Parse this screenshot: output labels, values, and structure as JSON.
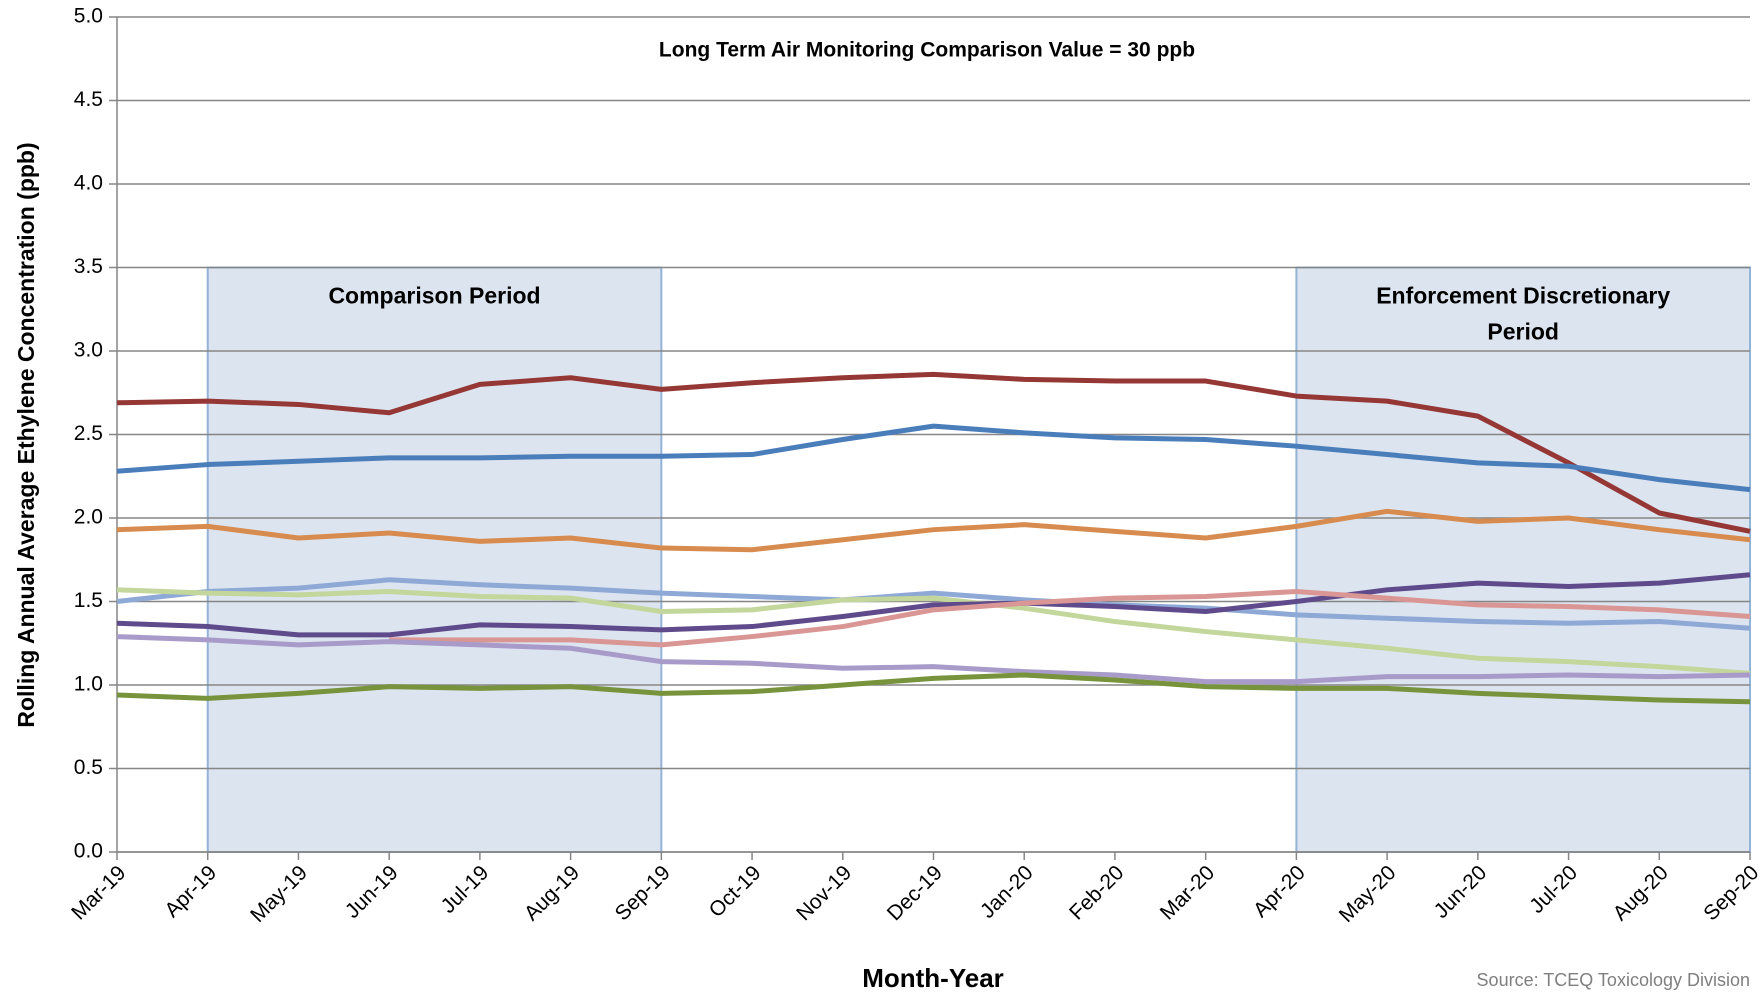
{
  "chart_data": {
    "type": "line",
    "annotation": "Long Term Air Monitoring Comparison Value = 30 ppb",
    "x_label": "Month-Year",
    "y_label": "Rolling Annual Average Ethylene  Concentration (ppb)",
    "source": "Source: TCEQ Toxicology Division",
    "categories": [
      "Mar-19",
      "Apr-19",
      "May-19",
      "Jun-19",
      "Jul-19",
      "Aug-19",
      "Sep-19",
      "Oct-19",
      "Nov-19",
      "Dec-19",
      "Jan-20",
      "Feb-20",
      "Mar-20",
      "Apr-20",
      "May-20",
      "Jun-20",
      "Jul-20",
      "Aug-20",
      "Sep-20"
    ],
    "ylim": [
      0,
      5
    ],
    "yticks": [
      {
        "value": 0,
        "label": "0.0"
      },
      {
        "value": 0.5,
        "label": "0.5"
      },
      {
        "value": 1,
        "label": "1.0"
      },
      {
        "value": 1.5,
        "label": "1.5"
      },
      {
        "value": 2,
        "label": "2.0"
      },
      {
        "value": 2.5,
        "label": "2.5"
      },
      {
        "value": 3,
        "label": "3.0"
      },
      {
        "value": 3.5,
        "label": "3.5"
      },
      {
        "value": 4,
        "label": "4.0"
      },
      {
        "value": 4.5,
        "label": "4.5"
      },
      {
        "value": 5,
        "label": "5.0"
      }
    ],
    "grid": true,
    "periods": [
      {
        "from": "Apr-19",
        "to": "Sep-19",
        "top": 3.5,
        "label": [
          "Comparison  Period"
        ]
      },
      {
        "from": "Apr-20",
        "to": "Sep-20",
        "top": 3.5,
        "label": [
          "Enforcement Discretionary",
          "Period"
        ]
      }
    ],
    "series": [
      {
        "color": "#953735",
        "values": [
          2.69,
          2.7,
          2.68,
          2.63,
          2.8,
          2.84,
          2.77,
          2.81,
          2.84,
          2.86,
          2.83,
          2.82,
          2.82,
          2.73,
          2.7,
          2.61,
          2.33,
          2.03,
          1.92
        ]
      },
      {
        "color": "#4a7ebb",
        "values": [
          2.28,
          2.32,
          2.34,
          2.36,
          2.36,
          2.37,
          2.37,
          2.38,
          2.47,
          2.55,
          2.51,
          2.48,
          2.47,
          2.43,
          2.38,
          2.33,
          2.31,
          2.23,
          2.17
        ]
      },
      {
        "color": "#d88b4e",
        "values": [
          1.93,
          1.95,
          1.88,
          1.91,
          1.86,
          1.88,
          1.82,
          1.81,
          1.87,
          1.93,
          1.96,
          1.92,
          1.88,
          1.95,
          2.04,
          1.98,
          2.0,
          1.93,
          1.87
        ]
      },
      {
        "color": "#8ea9d6",
        "values": [
          1.5,
          1.56,
          1.58,
          1.63,
          1.6,
          1.58,
          1.55,
          1.53,
          1.51,
          1.55,
          1.51,
          1.48,
          1.46,
          1.42,
          1.4,
          1.38,
          1.37,
          1.38,
          1.34
        ]
      },
      {
        "color": "#c3d69b",
        "values": [
          1.57,
          1.55,
          1.54,
          1.56,
          1.53,
          1.52,
          1.44,
          1.45,
          1.51,
          1.52,
          1.46,
          1.38,
          1.32,
          1.27,
          1.22,
          1.16,
          1.14,
          1.11,
          1.07
        ]
      },
      {
        "color": "#5f4b8b",
        "values": [
          1.37,
          1.35,
          1.3,
          1.3,
          1.36,
          1.35,
          1.33,
          1.35,
          1.41,
          1.48,
          1.49,
          1.47,
          1.44,
          1.5,
          1.57,
          1.61,
          1.59,
          1.61,
          1.66
        ]
      },
      {
        "color": "#d99694",
        "values": [
          null,
          null,
          null,
          1.27,
          1.27,
          1.27,
          1.24,
          1.29,
          1.35,
          1.45,
          1.49,
          1.52,
          1.53,
          1.56,
          1.52,
          1.48,
          1.47,
          1.45,
          1.41
        ]
      },
      {
        "color": "#a99bc9",
        "values": [
          1.29,
          1.27,
          1.24,
          1.26,
          1.24,
          1.22,
          1.14,
          1.13,
          1.1,
          1.11,
          1.08,
          1.06,
          1.02,
          1.02,
          1.05,
          1.05,
          1.06,
          1.05,
          1.06
        ]
      },
      {
        "color": "#77933c",
        "values": [
          0.94,
          0.92,
          0.95,
          0.99,
          0.98,
          0.99,
          0.95,
          0.96,
          1.0,
          1.04,
          1.06,
          1.03,
          0.99,
          0.98,
          0.98,
          0.95,
          0.93,
          0.91,
          0.9
        ]
      }
    ]
  }
}
